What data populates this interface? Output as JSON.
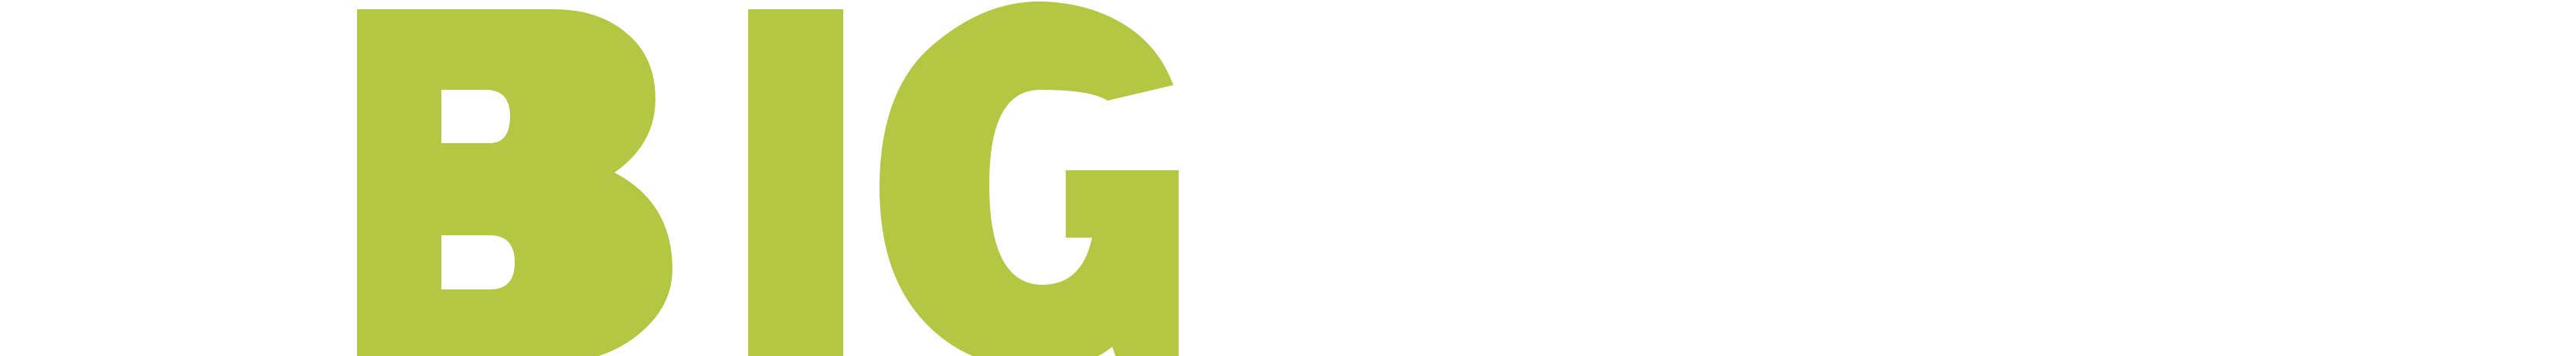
{
  "logo": {
    "wordmark": "BIG",
    "letters": [
      "B",
      "I",
      "G"
    ],
    "color": "#b3c743",
    "background": "#ffffff"
  }
}
